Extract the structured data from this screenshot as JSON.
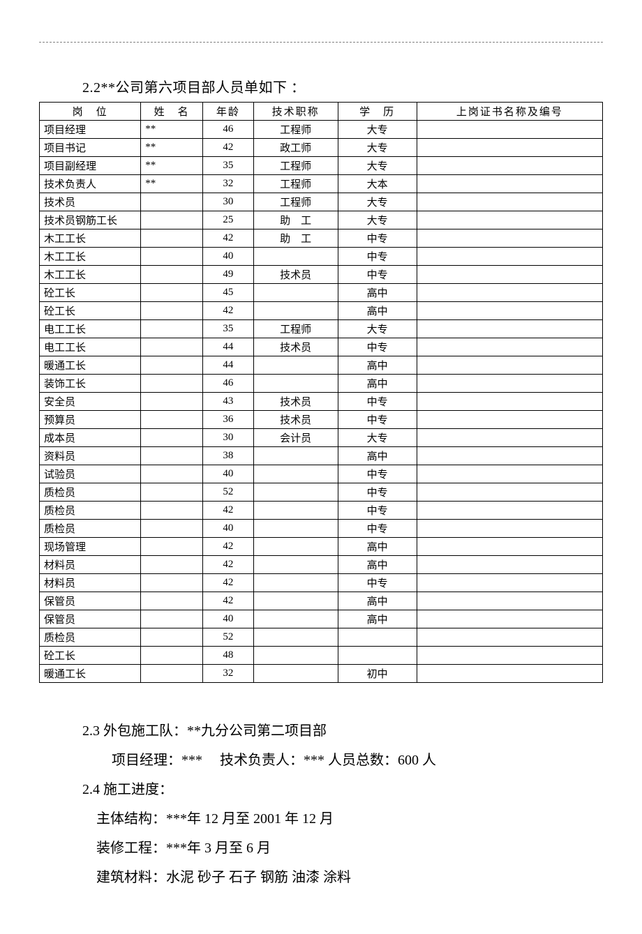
{
  "heading": "2.2**公司第六项目部人员单如下 ：",
  "table": {
    "columns": [
      "岗　位",
      "姓　名",
      "年龄",
      "技术职称",
      "学　历",
      "上岗证书名称及编号"
    ],
    "col_widths": [
      "18%",
      "11%",
      "9%",
      "15%",
      "14%",
      "33%"
    ],
    "rows": [
      [
        "项目经理",
        "**",
        "46",
        "工程师",
        "大专",
        ""
      ],
      [
        "项目书记",
        "**",
        "42",
        "政工师",
        "大专",
        ""
      ],
      [
        "项目副经理",
        "**",
        "35",
        "工程师",
        "大专",
        ""
      ],
      [
        "技术负责人",
        "**",
        "32",
        "工程师",
        "大本",
        ""
      ],
      [
        "技术员",
        "",
        "30",
        "工程师",
        "大专",
        ""
      ],
      [
        "技术员钢筋工长",
        "",
        "25",
        "助　工",
        "大专",
        ""
      ],
      [
        "木工工长",
        "",
        "42",
        "助　工",
        "中专",
        ""
      ],
      [
        "木工工长",
        "",
        "40",
        "",
        "中专",
        ""
      ],
      [
        "木工工长",
        "",
        "49",
        "技术员",
        "中专",
        ""
      ],
      [
        "砼工长",
        "",
        "45",
        "",
        "高中",
        ""
      ],
      [
        "砼工长",
        "",
        "42",
        "",
        "高中",
        ""
      ],
      [
        "电工工长",
        "",
        "35",
        "工程师",
        "大专",
        ""
      ],
      [
        "电工工长",
        "",
        "44",
        "技术员",
        "中专",
        ""
      ],
      [
        "暖通工长",
        "",
        "44",
        "",
        "高中",
        ""
      ],
      [
        "装饰工长",
        "",
        "46",
        "",
        "高中",
        ""
      ],
      [
        "安全员",
        "",
        "43",
        "技术员",
        "中专",
        ""
      ],
      [
        "预算员",
        "",
        "36",
        "技术员",
        "中专",
        ""
      ],
      [
        "成本员",
        "",
        "30",
        "会计员",
        "大专",
        ""
      ],
      [
        "资料员",
        "",
        "38",
        "",
        "高中",
        ""
      ],
      [
        "试验员",
        "",
        "40",
        "",
        "中专",
        ""
      ],
      [
        "质检员",
        "",
        "52",
        "",
        "中专",
        ""
      ],
      [
        "质检员",
        "",
        "42",
        "",
        "中专",
        ""
      ],
      [
        "质检员",
        "",
        "40",
        "",
        "中专",
        ""
      ],
      [
        "现场管理",
        "",
        "42",
        "",
        "高中",
        ""
      ],
      [
        "材料员",
        "",
        "42",
        "",
        "高中",
        ""
      ],
      [
        "材料员",
        "",
        "42",
        "",
        "中专",
        ""
      ],
      [
        "保管员",
        "",
        "42",
        "",
        "高中",
        ""
      ],
      [
        "保管员",
        "",
        "40",
        "",
        "高中",
        ""
      ],
      [
        "质检员",
        "",
        "52",
        "",
        "",
        ""
      ],
      [
        "砼工长",
        "",
        "48",
        "",
        "",
        ""
      ],
      [
        "暖通工长",
        "",
        "32",
        "",
        "初中",
        ""
      ]
    ]
  },
  "body": {
    "line1": "2.3 外包施工队：**九分公司第二项目部",
    "line2": "项目经理：***　 技术负责人：***  人员总数：600 人",
    "line3": "2.4 施工进度：",
    "line4": "主体结构：***年 12 月至 2001 年 12 月",
    "line5": "装修工程：***年 3 月至 6 月",
    "line6": "建筑材料：水泥  砂子  石子  钢筋  油漆  涂料"
  }
}
